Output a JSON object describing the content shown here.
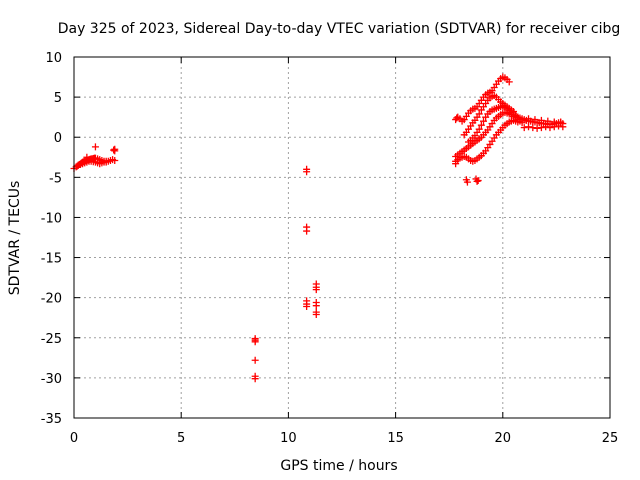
{
  "chart_data": {
    "type": "scatter",
    "title": "Day 325 of 2023, Sidereal Day-to-day VTEC variation (SDTVAR) for receiver cibg",
    "xlabel": "GPS time / hours",
    "ylabel": "SDTVAR / TECUs",
    "xlim": [
      0,
      25
    ],
    "ylim": [
      -35,
      10
    ],
    "xticks": [
      0,
      5,
      10,
      15,
      20,
      25
    ],
    "yticks": [
      -35,
      -30,
      -25,
      -20,
      -15,
      -10,
      -5,
      0,
      5,
      10
    ],
    "xtick_labels": [
      "0",
      "5",
      "10",
      "15",
      "20",
      "25"
    ],
    "ytick_labels": [
      "-35",
      "-30",
      "-25",
      "-20",
      "-15",
      "-10",
      "-5",
      "0",
      "5",
      "10"
    ],
    "grid": true,
    "marker": "+",
    "color": "#ff0000",
    "series": [
      {
        "name": "SDTVAR",
        "x": [
          0.0,
          0.1,
          0.15,
          0.2,
          0.25,
          0.3,
          0.35,
          0.4,
          0.45,
          0.5,
          0.55,
          0.6,
          0.65,
          0.7,
          0.75,
          0.8,
          0.85,
          0.9,
          0.95,
          1.0,
          1.1,
          1.2,
          1.3,
          1.4,
          1.5,
          1.6,
          1.7,
          1.8,
          1.9,
          0.2,
          0.3,
          0.4,
          0.5,
          0.6,
          0.7,
          0.8,
          0.9,
          1.0,
          1.1,
          1.2,
          1.3,
          1.4,
          1.5,
          1.0,
          0.6,
          1.9,
          1.9,
          1.85,
          8.45,
          8.45,
          8.45,
          8.45,
          8.45,
          8.45,
          10.85,
          10.85,
          10.85,
          10.85,
          10.85,
          10.85,
          10.85,
          11.3,
          11.3,
          11.3,
          11.3,
          11.3,
          11.3,
          11.3,
          17.8,
          17.85,
          17.9,
          18.0,
          18.1,
          18.2,
          18.3,
          18.4,
          18.5,
          18.6,
          18.7,
          18.8,
          18.9,
          19.0,
          19.1,
          19.2,
          19.3,
          19.4,
          19.5,
          19.6,
          19.7,
          19.8,
          19.9,
          20.0,
          20.1,
          20.2,
          20.3,
          18.2,
          18.3,
          18.4,
          18.5,
          18.6,
          18.7,
          18.8,
          18.9,
          19.0,
          19.1,
          19.2,
          19.3,
          19.4,
          19.5,
          19.6,
          19.7,
          19.8,
          19.9,
          20.0,
          20.1,
          20.2,
          20.3,
          20.4,
          20.5,
          18.4,
          18.5,
          18.6,
          18.7,
          18.8,
          18.9,
          19.0,
          19.1,
          19.2,
          19.3,
          19.4,
          19.5,
          19.6,
          19.7,
          19.8,
          19.9,
          20.0,
          20.1,
          20.2,
          20.3,
          20.4,
          20.5,
          20.6,
          20.7,
          17.8,
          17.9,
          18.0,
          18.1,
          18.2,
          18.3,
          18.4,
          18.5,
          18.6,
          18.7,
          18.8,
          18.9,
          19.0,
          19.1,
          19.2,
          19.3,
          19.4,
          19.5,
          19.6,
          19.7,
          19.8,
          19.9,
          20.0,
          20.1,
          20.2,
          20.3,
          20.4,
          20.5,
          20.6,
          20.7,
          20.8,
          20.9,
          17.8,
          17.8,
          17.9,
          18.0,
          18.1,
          18.2,
          18.3,
          18.4,
          18.5,
          18.6,
          18.7,
          18.8,
          18.9,
          19.0,
          19.1,
          19.2,
          19.3,
          19.4,
          19.5,
          19.6,
          19.7,
          19.8,
          19.9,
          20.0,
          20.1,
          20.2,
          20.3,
          20.4,
          20.5,
          20.6,
          20.7,
          20.6,
          20.7,
          20.8,
          20.9,
          21.0,
          21.1,
          21.2,
          21.3,
          21.4,
          21.5,
          21.6,
          21.7,
          21.8,
          21.9,
          22.0,
          22.1,
          22.2,
          22.3,
          22.4,
          22.5,
          22.6,
          22.7,
          22.8,
          21.0,
          21.2,
          21.4,
          21.6,
          21.8,
          22.0,
          22.2,
          22.4,
          22.6,
          22.8,
          21.2,
          21.5,
          21.8,
          22.1,
          22.4,
          22.7,
          18.3,
          18.35,
          18.75,
          18.8,
          18.85
        ],
        "y": [
          -3.9,
          -3.7,
          -3.6,
          -3.5,
          -3.4,
          -3.3,
          -3.2,
          -3.1,
          -3.05,
          -3.0,
          -2.95,
          -2.9,
          -2.85,
          -2.8,
          -2.75,
          -2.7,
          -2.7,
          -2.65,
          -2.6,
          -2.6,
          -2.7,
          -2.8,
          -2.9,
          -3.0,
          -3.1,
          -3.0,
          -2.9,
          -2.8,
          -2.9,
          -3.5,
          -3.4,
          -3.3,
          -3.2,
          -3.1,
          -3.0,
          -3.0,
          -3.05,
          -3.1,
          -3.2,
          -3.3,
          -3.2,
          -3.1,
          -3.0,
          -1.2,
          -2.5,
          -1.5,
          -1.7,
          -1.6,
          -25.1,
          -25.5,
          -27.8,
          -29.8,
          -30.1,
          -25.3,
          -4.0,
          -4.3,
          -11.2,
          -11.7,
          -20.4,
          -20.8,
          -21.1,
          -18.3,
          -18.7,
          -19.0,
          -20.6,
          -21.0,
          -21.8,
          -22.1,
          2.2,
          2.4,
          2.5,
          2.3,
          2.0,
          2.2,
          2.6,
          3.0,
          3.3,
          3.5,
          3.6,
          3.8,
          4.2,
          4.6,
          5.0,
          5.3,
          5.5,
          5.6,
          5.8,
          6.2,
          6.6,
          7.0,
          7.3,
          7.5,
          7.4,
          7.2,
          6.9,
          0.3,
          0.6,
          1.0,
          1.4,
          1.8,
          2.1,
          2.5,
          2.9,
          3.4,
          3.8,
          4.2,
          4.6,
          4.9,
          5.1,
          5.2,
          5.0,
          4.7,
          4.4,
          4.2,
          4.0,
          3.8,
          3.6,
          3.4,
          3.2,
          -0.6,
          -0.4,
          -0.1,
          0.2,
          0.6,
          1.0,
          1.5,
          2.0,
          2.5,
          2.9,
          3.2,
          3.4,
          3.5,
          3.6,
          3.7,
          3.8,
          3.9,
          3.7,
          3.5,
          3.3,
          3.1,
          2.9,
          2.7,
          2.5,
          -2.4,
          -2.2,
          -2.0,
          -1.8,
          -1.6,
          -1.4,
          -1.2,
          -1.0,
          -0.8,
          -0.6,
          -0.4,
          -0.2,
          0.0,
          0.3,
          0.6,
          0.9,
          1.3,
          1.7,
          2.1,
          2.4,
          2.6,
          2.8,
          3.0,
          3.1,
          3.0,
          2.9,
          2.8,
          2.6,
          2.4,
          2.2,
          2.0,
          1.8,
          -3.3,
          -3.0,
          -2.8,
          -2.6,
          -2.5,
          -2.4,
          -2.5,
          -2.7,
          -2.9,
          -3.0,
          -2.9,
          -2.7,
          -2.5,
          -2.3,
          -2.0,
          -1.7,
          -1.3,
          -0.9,
          -0.5,
          -0.1,
          0.3,
          0.6,
          0.9,
          1.2,
          1.5,
          1.7,
          1.9,
          2.0,
          2.1,
          2.0,
          1.9,
          2.6,
          2.5,
          2.4,
          2.3,
          2.2,
          2.1,
          2.0,
          2.0,
          1.9,
          1.9,
          1.8,
          1.8,
          1.7,
          1.7,
          1.7,
          1.6,
          1.6,
          1.6,
          1.7,
          1.7,
          1.8,
          1.8,
          1.7,
          1.2,
          1.3,
          1.2,
          1.1,
          1.2,
          1.3,
          1.2,
          1.3,
          1.4,
          1.3,
          2.3,
          2.2,
          2.1,
          2.0,
          1.9,
          1.9,
          -5.3,
          -5.6,
          -5.2,
          -5.5,
          -5.4
        ]
      }
    ]
  }
}
